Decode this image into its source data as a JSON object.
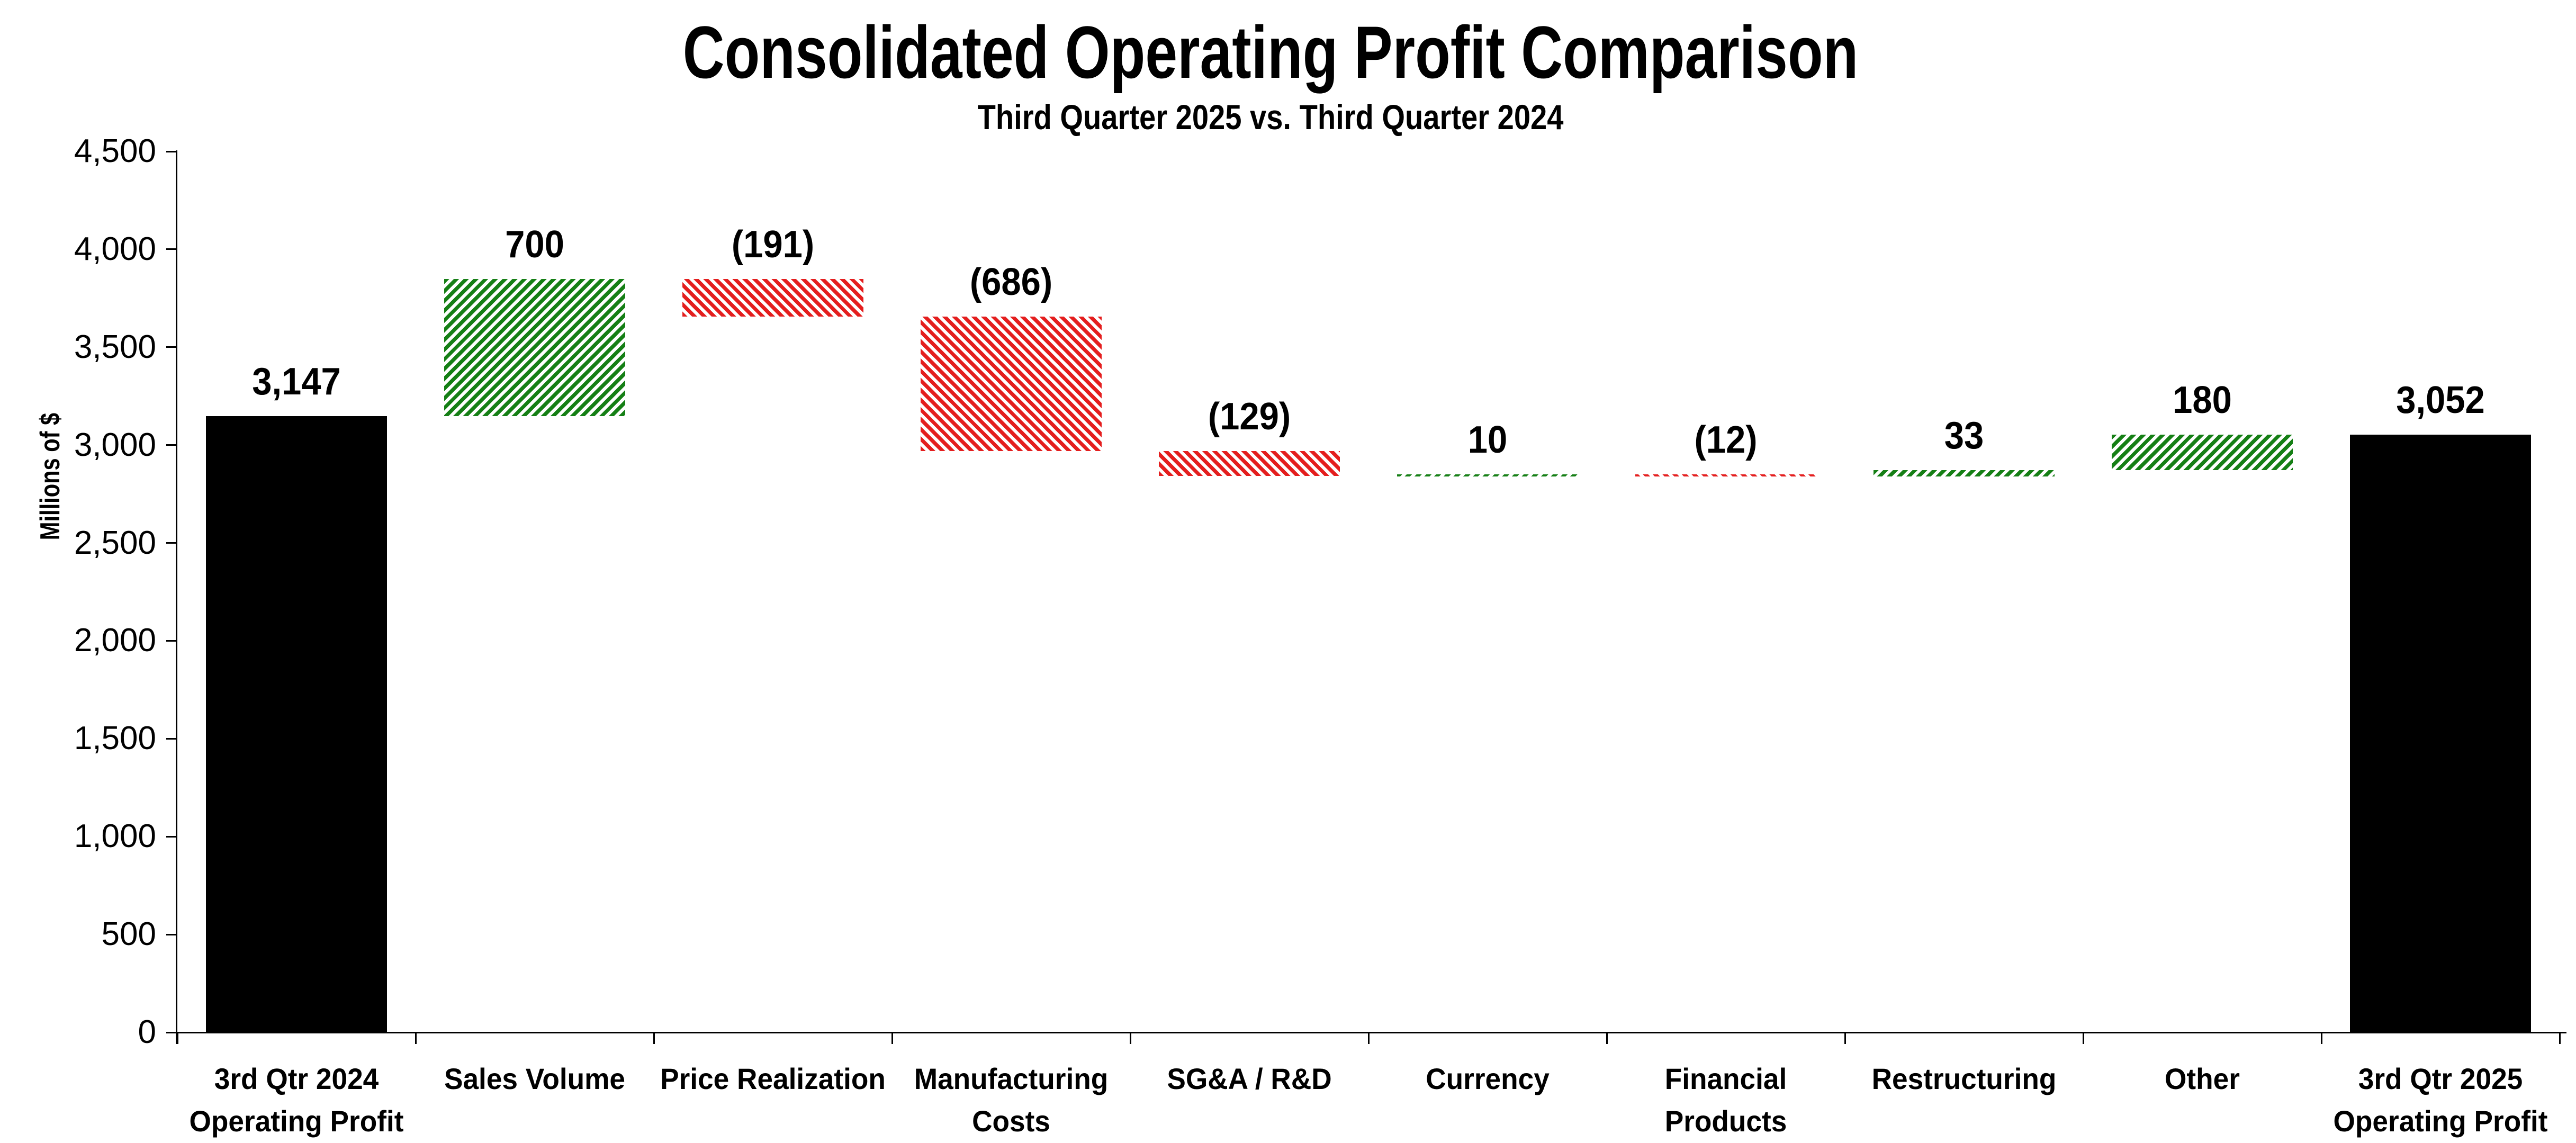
{
  "chart_data": {
    "type": "bar",
    "subtype": "waterfall",
    "title": "Consolidated Operating Profit Comparison",
    "subtitle": "Third Quarter 2025 vs. Third Quarter 2024",
    "ylabel": "Millions of $",
    "xlabel": "",
    "ylim": [
      0,
      4500
    ],
    "ytick_step": 500,
    "ytick_labels": [
      "0",
      "500",
      "1,000",
      "1,500",
      "2,000",
      "2,500",
      "3,000",
      "3,500",
      "4,000",
      "4,500"
    ],
    "grid": false,
    "legend": false,
    "colors": {
      "increase": "#157f15",
      "decrease": "#e41e1e",
      "total": "#000000",
      "axis": "#000000",
      "background": "#ffffff"
    },
    "hatch": {
      "increase": "diagonal-up-white-stripes",
      "decrease": "diagonal-down-white-stripes",
      "total": "solid"
    },
    "categories": [
      {
        "label": [
          "3rd Qtr 2024",
          "Operating Profit"
        ],
        "kind": "total",
        "value": 3147,
        "start": 0,
        "end": 3147,
        "display": "3,147"
      },
      {
        "label": [
          "Sales Volume"
        ],
        "kind": "increase",
        "value": 700,
        "start": 3147,
        "end": 3847,
        "display": "700"
      },
      {
        "label": [
          "Price Realization"
        ],
        "kind": "decrease",
        "value": -191,
        "start": 3847,
        "end": 3656,
        "display": "(191)"
      },
      {
        "label": [
          "Manufacturing",
          "Costs"
        ],
        "kind": "decrease",
        "value": -686,
        "start": 3656,
        "end": 2970,
        "display": "(686)"
      },
      {
        "label": [
          "SG&A / R&D"
        ],
        "kind": "decrease",
        "value": -129,
        "start": 2970,
        "end": 2841,
        "display": "(129)"
      },
      {
        "label": [
          "Currency"
        ],
        "kind": "increase",
        "value": 10,
        "start": 2841,
        "end": 2851,
        "display": "10"
      },
      {
        "label": [
          "Financial",
          "Products"
        ],
        "kind": "decrease",
        "value": -12,
        "start": 2851,
        "end": 2839,
        "display": "(12)"
      },
      {
        "label": [
          "Restructuring"
        ],
        "kind": "increase",
        "value": 33,
        "start": 2839,
        "end": 2872,
        "display": "33"
      },
      {
        "label": [
          "Other"
        ],
        "kind": "increase",
        "value": 180,
        "start": 2872,
        "end": 3052,
        "display": "180"
      },
      {
        "label": [
          "3rd Qtr 2025",
          "Operating Profit"
        ],
        "kind": "total",
        "value": 3052,
        "start": 0,
        "end": 3052,
        "display": "3,052"
      }
    ]
  }
}
